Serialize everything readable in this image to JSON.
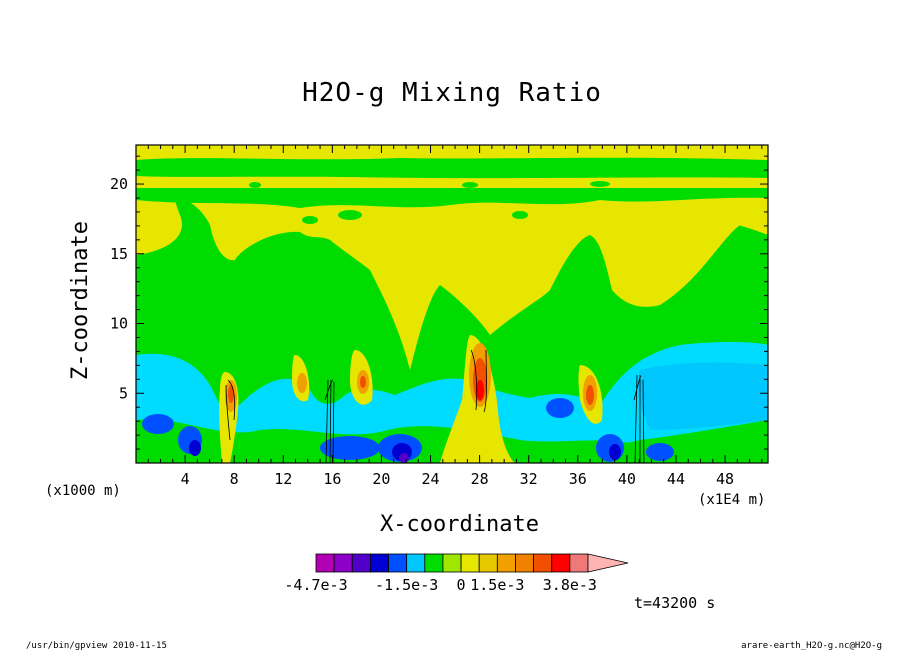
{
  "chart_data": {
    "type": "heatmap",
    "title": "H2O-g Mixing Ratio",
    "xlabel": "X-coordinate",
    "ylabel": "Z-coordinate",
    "x_unit_left": "(x1000 m)",
    "x_unit_right": "(x1E4 m)",
    "xlim": [
      0,
      51.5
    ],
    "ylim": [
      0,
      22.8
    ],
    "x_ticks": [
      4,
      8,
      12,
      16,
      20,
      24,
      28,
      32,
      36,
      40,
      44,
      48
    ],
    "y_ticks": [
      5,
      10,
      15,
      20
    ],
    "colorbar": {
      "colors": [
        "#b400b4",
        "#8c00c8",
        "#5000c8",
        "#0000d2",
        "#0050ff",
        "#00c8ff",
        "#00dc00",
        "#a0e600",
        "#e6e600",
        "#e6c800",
        "#f0a000",
        "#f08200",
        "#f05000",
        "#ff0000",
        "#f07878",
        "#ffb4b4"
      ],
      "labels": [
        {
          "text": "-4.7e-3",
          "index": 0
        },
        {
          "text": "-1.5e-3",
          "index": 5
        },
        {
          "text": "0",
          "index": 8
        },
        {
          "text": "1.5e-3",
          "index": 10
        },
        {
          "text": "3.8e-3",
          "index": 14
        }
      ]
    },
    "time_label": "t=43200 s"
  },
  "footer": {
    "left": "/usr/bin/gpview  2010-11-15",
    "right": "arare-earth_H2O-g.nc@H2O-g"
  }
}
